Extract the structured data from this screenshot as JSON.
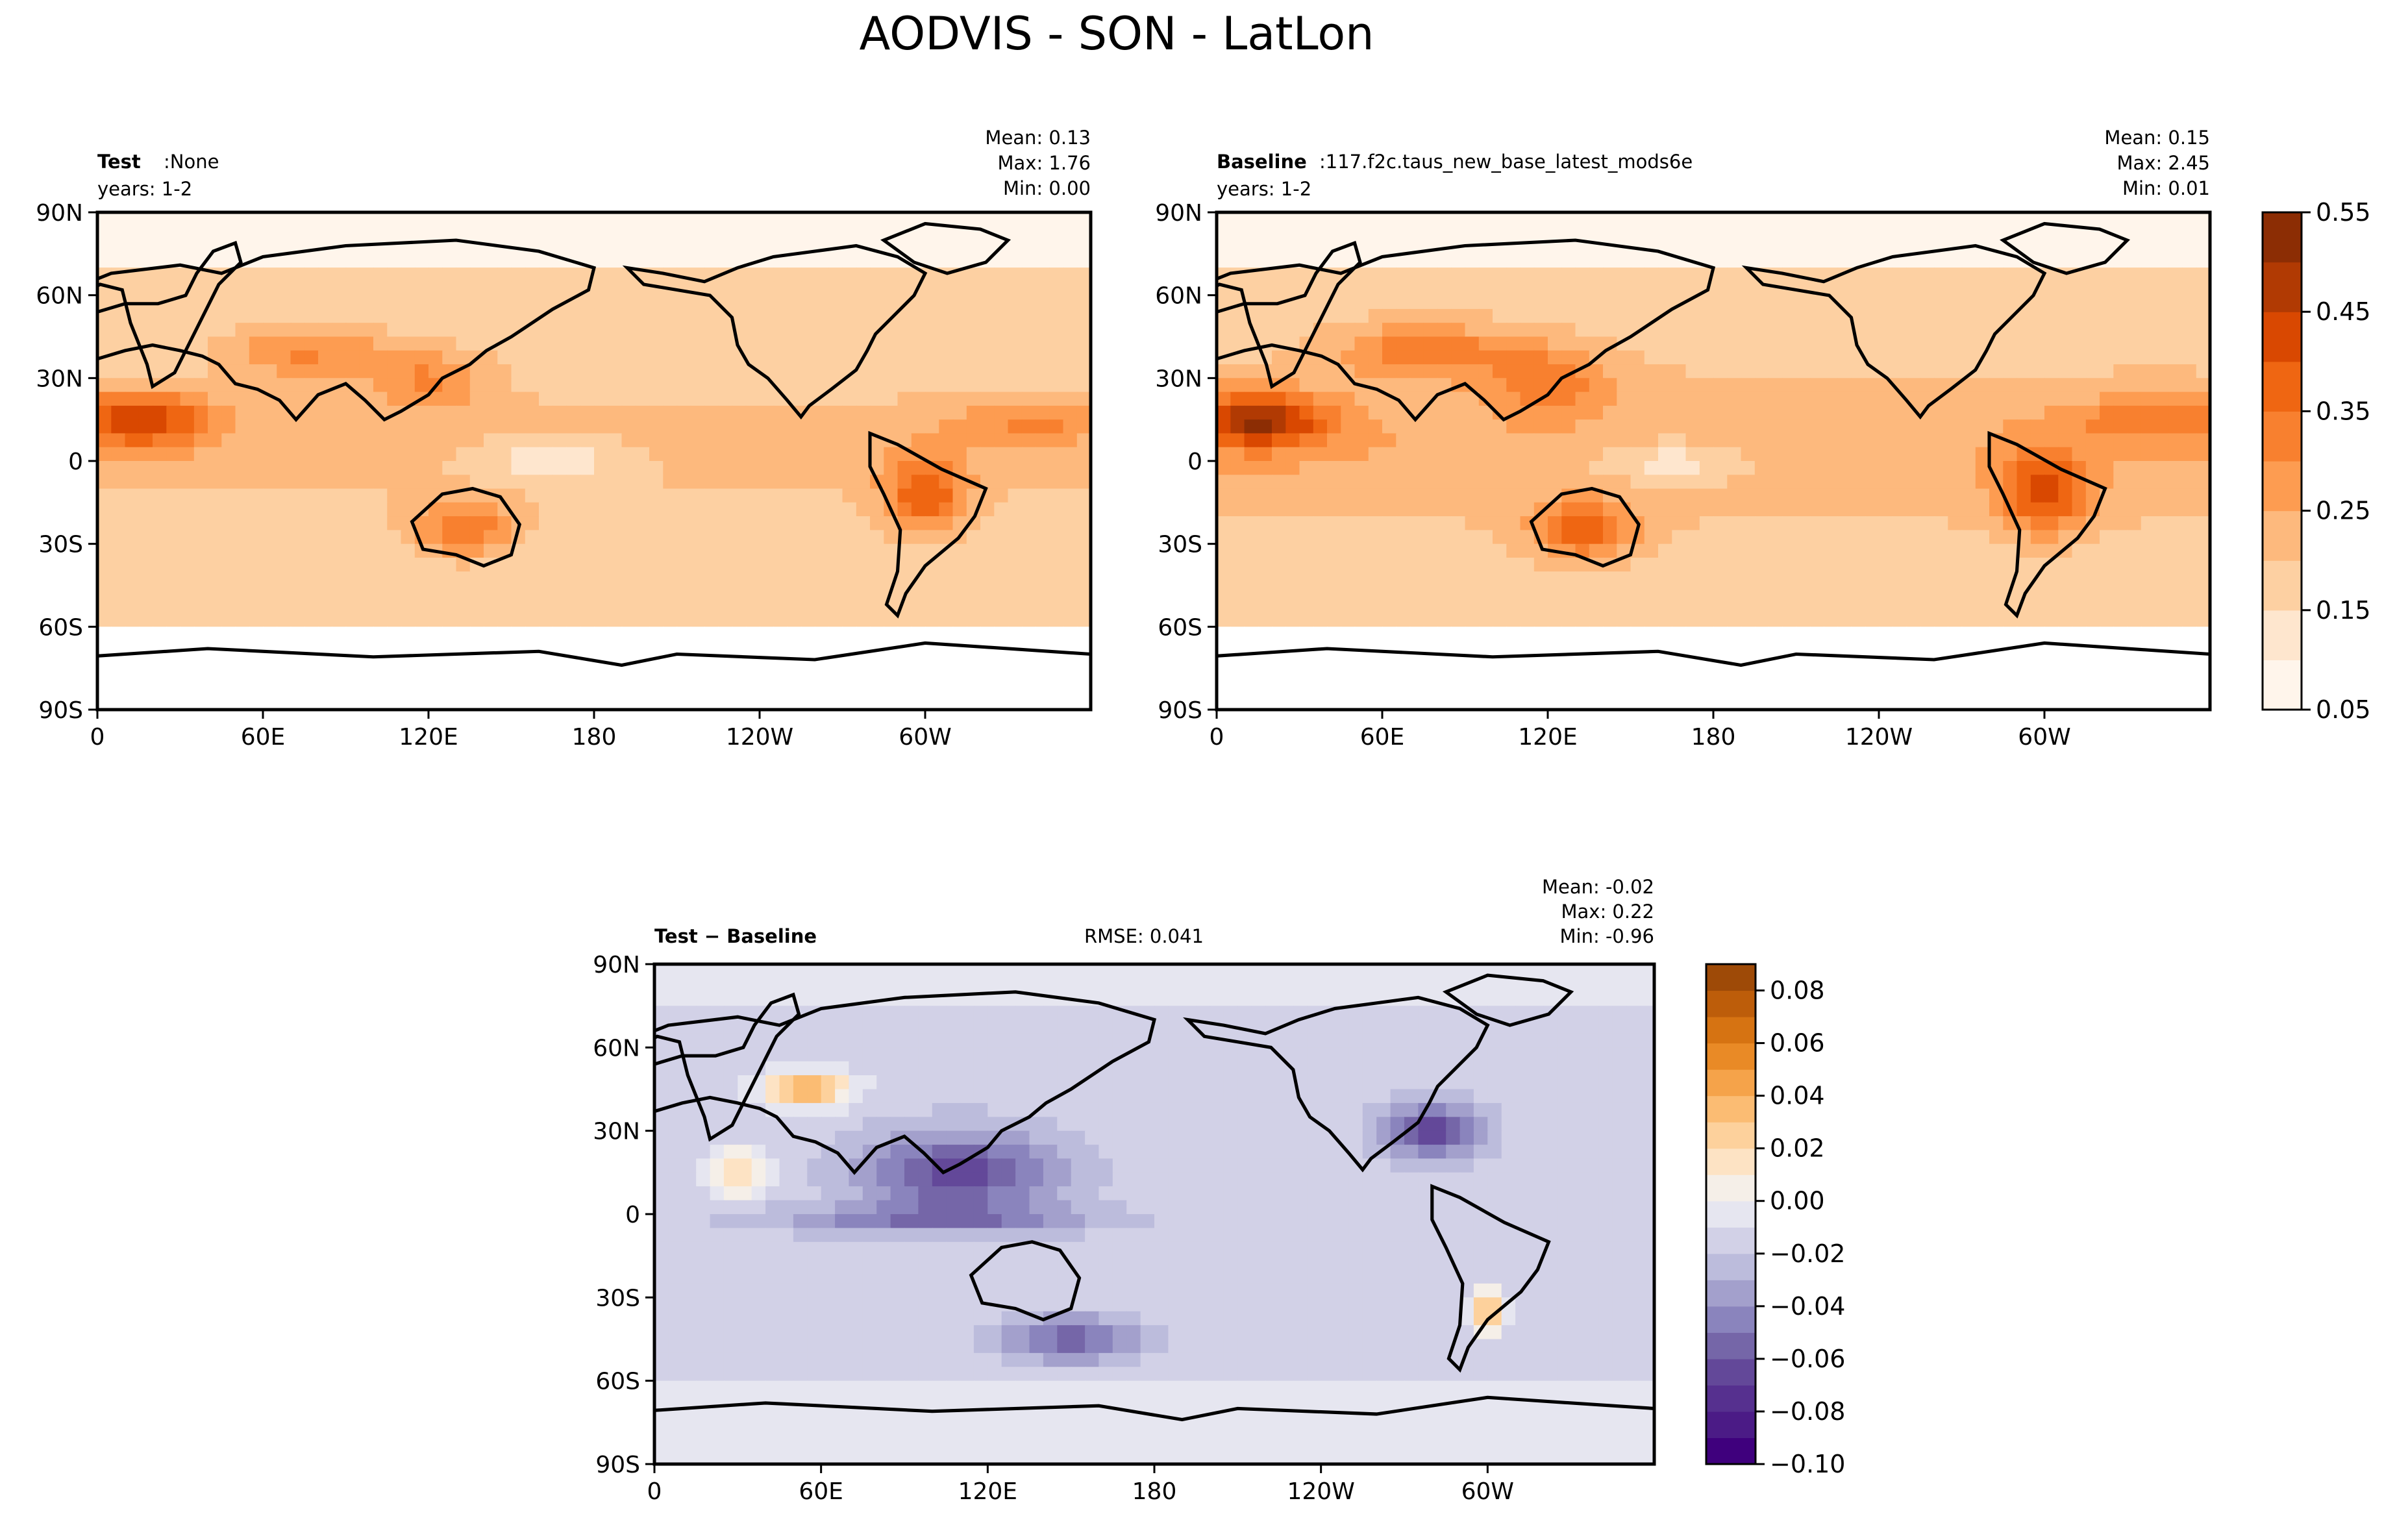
{
  "figure": {
    "title": "AODVIS - SON - LatLon"
  },
  "chart_data": [
    {
      "type": "heatmap",
      "panel": "test",
      "label_bold": "Test",
      "label_rest": ":None",
      "years": "years: 1-2",
      "stats": [
        "Mean:  0.13",
        "Max:  1.76",
        "Min:  0.00"
      ],
      "xticks": [
        "0",
        "60E",
        "120E",
        "180",
        "120W",
        "60W"
      ],
      "yticks": [
        "90N",
        "60N",
        "30N",
        "0",
        "30S",
        "60S",
        "90S"
      ],
      "mean": 0.13,
      "max": 1.76,
      "min": 0.0
    },
    {
      "type": "heatmap",
      "panel": "baseline",
      "label_bold": "Baseline",
      "label_rest": ":117.f2c.taus_new_base_latest_mods6e",
      "years": "years: 1-2",
      "stats": [
        "Mean:  0.15",
        "Max:  2.45",
        "Min:  0.01"
      ],
      "xticks": [
        "0",
        "60E",
        "120E",
        "180",
        "120W",
        "60W"
      ],
      "yticks": [
        "90N",
        "60N",
        "30N",
        "0",
        "30S",
        "60S",
        "90S"
      ],
      "mean": 0.15,
      "max": 2.45,
      "min": 0.01,
      "colorbar": {
        "ticks": [
          "0.55",
          "0.45",
          "0.35",
          "0.25",
          "0.15",
          "0.05"
        ],
        "levels": [
          0.05,
          0.1,
          0.15,
          0.2,
          0.25,
          0.3,
          0.35,
          0.4,
          0.45,
          0.5,
          0.55
        ],
        "colors": [
          "#fff5eb",
          "#fee6ce",
          "#fdd0a2",
          "#fdb97d",
          "#fd9c51",
          "#f8802f",
          "#ef6612",
          "#d94801",
          "#b13a03",
          "#8c2d04"
        ]
      }
    },
    {
      "type": "heatmap",
      "panel": "difference",
      "label_bold": "Test − Baseline",
      "rmse": "RMSE: 0.041",
      "stats": [
        "Mean: -0.02",
        "Max:  0.22",
        "Min: -0.96"
      ],
      "xticks": [
        "0",
        "60E",
        "120E",
        "180",
        "120W",
        "60W"
      ],
      "yticks": [
        "90N",
        "60N",
        "30N",
        "0",
        "30S",
        "60S",
        "90S"
      ],
      "mean": -0.02,
      "max": 0.22,
      "min": -0.96,
      "colorbar": {
        "ticks": [
          "0.08",
          "0.06",
          "0.04",
          "0.02",
          "0.00",
          "−0.02",
          "−0.04",
          "−0.06",
          "−0.08",
          "−0.10"
        ],
        "levels": [
          -0.1,
          -0.09,
          -0.08,
          -0.07,
          -0.06,
          -0.05,
          -0.04,
          -0.03,
          -0.02,
          -0.01,
          0.0,
          0.01,
          0.02,
          0.03,
          0.04,
          0.05,
          0.06,
          0.07,
          0.08,
          0.09
        ],
        "colors": [
          "#3f007d",
          "#4b1b86",
          "#56308f",
          "#634899",
          "#7566a8",
          "#8a84bd",
          "#a3a0cc",
          "#bcbcdc",
          "#d2d1e7",
          "#e6e6f0",
          "#f5efe8",
          "#fde3c4",
          "#fdd19c",
          "#fbbc73",
          "#f5a34a",
          "#e98a26",
          "#d67312",
          "#bd5d0a",
          "#9e4a07"
        ]
      }
    }
  ]
}
